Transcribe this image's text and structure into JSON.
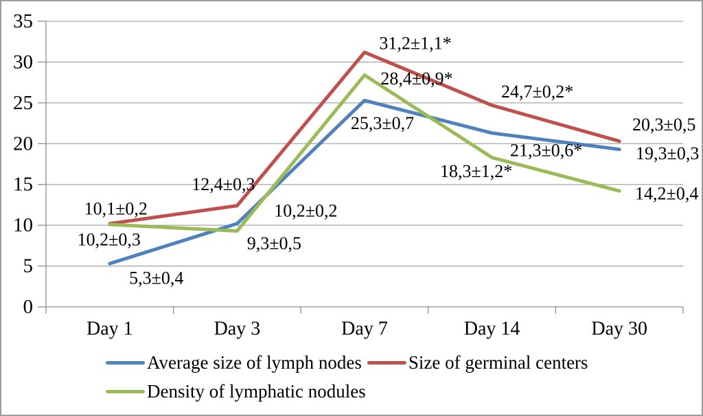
{
  "chart_data": {
    "type": "line",
    "categories": [
      "Day 1",
      "Day 3",
      "Day 7",
      "Day 14",
      "Day 30"
    ],
    "series": [
      {
        "name": "Average size of lymph nodes",
        "color": "#4F81BD",
        "values": [
          5.3,
          10.2,
          25.3,
          21.3,
          19.3
        ],
        "point_labels": [
          "5,3±0,4",
          "10,2±0,2",
          "25,3±0,7",
          "21,3±0,6*",
          "19,3±0,3"
        ],
        "label_offsets": [
          [
            68,
            21
          ],
          [
            100,
            -19
          ],
          [
            26,
            33
          ],
          [
            79,
            25
          ],
          [
            70,
            6
          ]
        ]
      },
      {
        "name": "Size of germinal centers",
        "color": "#C0504D",
        "values": [
          10.2,
          12.4,
          31.2,
          24.7,
          20.3
        ],
        "point_labels": [
          "10,2±0,3",
          "12,4±0,3",
          "31,2±1,1*",
          "24,7±0,2*",
          "20,3±0,5"
        ],
        "label_offsets": [
          [
            -1,
            23
          ],
          [
            -20,
            -31
          ],
          [
            74,
            -13
          ],
          [
            66,
            -20
          ],
          [
            65,
            -24
          ]
        ]
      },
      {
        "name": "Density of lymphatic nodules",
        "color": "#9BBB59",
        "values": [
          10.1,
          9.3,
          28.4,
          18.3,
          14.2
        ],
        "point_labels": [
          "10,1±0,2",
          "9,3±0,5",
          "28,4±0,9*",
          "18,3±1,2*",
          "14,2±0,4"
        ],
        "label_offsets": [
          [
            9,
            -23
          ],
          [
            54,
            18
          ],
          [
            76,
            5
          ],
          [
            -23,
            20
          ],
          [
            69,
            4
          ]
        ]
      }
    ],
    "y_axis": {
      "min": 0,
      "max": 35,
      "step": 5,
      "tick_labels": [
        "0",
        "5",
        "10",
        "15",
        "20",
        "25",
        "30",
        "35"
      ]
    },
    "xlabel": "",
    "ylabel": "",
    "title": "",
    "grid": true,
    "legend_position": "bottom-left",
    "colors": {
      "gridline": "#A6A6A6",
      "axis": "#8C8C8C",
      "text": "#000000"
    }
  }
}
